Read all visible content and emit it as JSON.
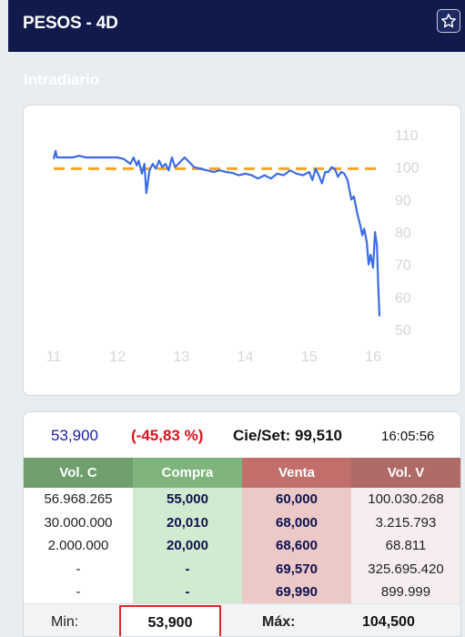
{
  "header": {
    "title": "PESOS - 4D",
    "favorite_icon": "star-outline-icon"
  },
  "section_label": "Intradiario",
  "chart_data": {
    "type": "line",
    "x_ticks": [
      "11",
      "12",
      "13",
      "14",
      "15",
      "16"
    ],
    "xlim": [
      11,
      16.15
    ],
    "y_ticks": [
      "110",
      "100",
      "90",
      "80",
      "70",
      "60",
      "50"
    ],
    "ylim": [
      50,
      110
    ],
    "reference_line": {
      "value": 99.51,
      "style": "dashed",
      "color": "#f5a623"
    },
    "series": [
      {
        "color": "#3b6ce6",
        "x": [
          11.0,
          11.03,
          11.05,
          11.1,
          11.2,
          11.3,
          11.4,
          11.5,
          11.6,
          11.7,
          11.8,
          11.9,
          12.0,
          12.1,
          12.2,
          12.25,
          12.3,
          12.33,
          12.38,
          12.42,
          12.45,
          12.5,
          12.55,
          12.6,
          12.65,
          12.7,
          12.75,
          12.8,
          12.85,
          12.9,
          12.95,
          13.0,
          13.05,
          13.1,
          13.2,
          13.3,
          13.4,
          13.5,
          13.6,
          13.7,
          13.8,
          13.9,
          14.0,
          14.1,
          14.2,
          14.3,
          14.4,
          14.5,
          14.6,
          14.7,
          14.8,
          14.9,
          15.0,
          15.05,
          15.1,
          15.15,
          15.2,
          15.25,
          15.3,
          15.35,
          15.4,
          15.45,
          15.5,
          15.55,
          15.6,
          15.63,
          15.66,
          15.7,
          15.73,
          15.76,
          15.8,
          15.83,
          15.86,
          15.9,
          15.93,
          15.96,
          16.0,
          16.03,
          16.06,
          16.08,
          16.1
        ],
        "y": [
          102.5,
          105,
          103,
          103,
          103,
          103,
          103.5,
          103,
          103,
          103,
          103,
          103,
          103,
          102.5,
          101,
          103,
          100.5,
          102,
          98,
          101,
          92,
          99,
          101,
          99.5,
          102,
          100,
          101,
          99,
          103,
          100,
          101,
          102,
          103,
          102,
          100,
          99.5,
          99,
          98.5,
          99,
          98.5,
          98.2,
          97.5,
          98,
          97.5,
          96.5,
          97.5,
          96.5,
          98,
          97.5,
          99,
          98,
          97.5,
          98.5,
          96,
          99.5,
          97.5,
          95,
          98.5,
          98.5,
          100,
          99.5,
          97,
          98.5,
          98,
          96,
          93,
          90,
          91,
          88,
          85,
          82,
          79,
          81,
          77,
          70,
          73,
          69,
          80,
          76,
          64,
          54
        ]
      }
    ],
    "grid": false,
    "legend": "none"
  },
  "quote": {
    "last": "53,900",
    "change": "(-45,83 %)",
    "close": "Cie/Set: 99,510",
    "time": "16:05:56"
  },
  "book": {
    "headers": [
      "Vol. C",
      "Compra",
      "Venta",
      "Vol. V"
    ],
    "rows": [
      [
        "56.968.265",
        "55,000",
        "60,000",
        "100.030.268"
      ],
      [
        "30.000.000",
        "20,010",
        "68,000",
        "3.215.793"
      ],
      [
        "2.000.000",
        "20,000",
        "68,600",
        "68.811"
      ],
      [
        "-",
        "-",
        "69,570",
        "325.695.420"
      ],
      [
        "-",
        "-",
        "69,990",
        "899.999"
      ]
    ]
  },
  "minmax": {
    "min_label": "Min:",
    "min_value": "53,900",
    "max_label": "Máx:",
    "max_value": "104,500"
  },
  "colors": {
    "header_bg": "#101b4c",
    "line": "#3b6ce6",
    "reference": "#f5a623",
    "negative": "#e0101a",
    "buy_header": "#7fb57c",
    "sell_header": "#c26f6c"
  }
}
